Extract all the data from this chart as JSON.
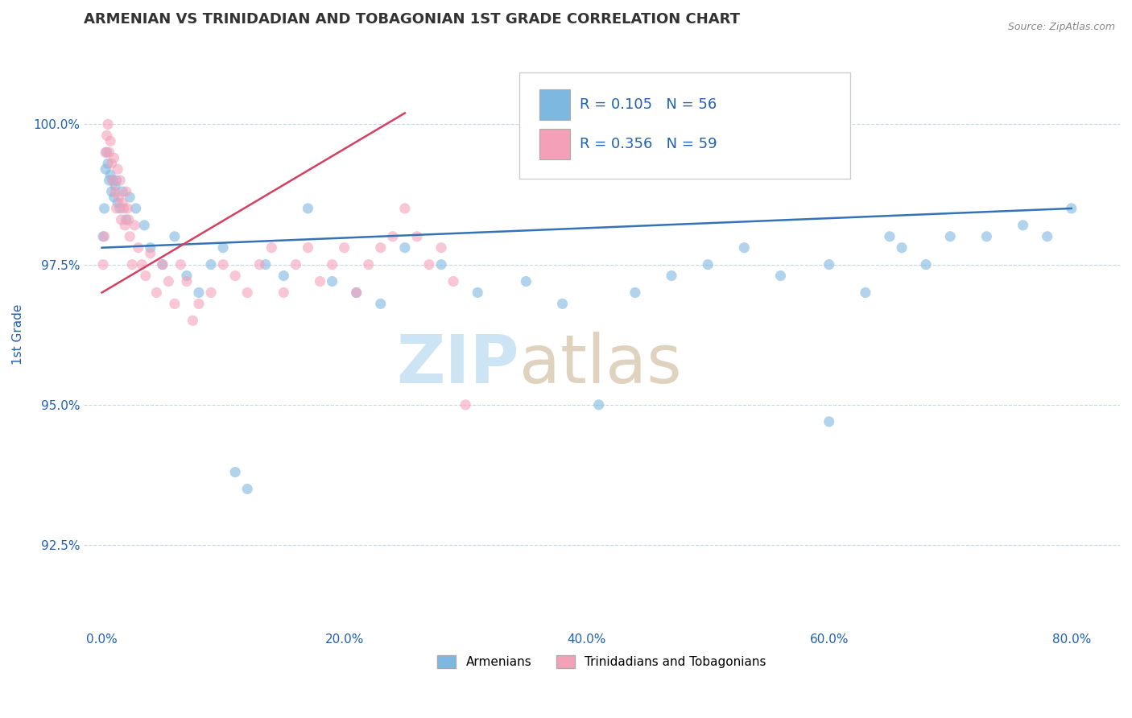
{
  "title": "ARMENIAN VS TRINIDADIAN AND TOBAGONIAN 1ST GRADE CORRELATION CHART",
  "source": "Source: ZipAtlas.com",
  "xlabel_ticks": [
    "0.0%",
    "20.0%",
    "40.0%",
    "60.0%",
    "80.0%"
  ],
  "xlabel_values": [
    0.0,
    20.0,
    40.0,
    60.0,
    80.0
  ],
  "ylabel": "1st Grade",
  "ylim": [
    91.0,
    101.5
  ],
  "xlim": [
    -1.5,
    84.0
  ],
  "ytick_values": [
    92.5,
    95.0,
    97.5,
    100.0
  ],
  "ytick_labels": [
    "92.5%",
    "95.0%",
    "97.5%",
    "100.0%"
  ],
  "R_armenian": 0.105,
  "N_armenian": 56,
  "R_trinidadian": 0.356,
  "N_trinidadian": 59,
  "legend_labels": [
    "Armenians",
    "Trinidadians and Tobagonians"
  ],
  "blue_color": "#7db8e0",
  "pink_color": "#f4a0b8",
  "blue_line_color": "#3473b7",
  "pink_line_color": "#d44060",
  "watermark_color": "#cde4f5",
  "title_color": "#333333",
  "axis_color": "#2060b0",
  "background_color": "#ffffff",
  "grid_color": "#c5d8ea",
  "scatter_alpha": 0.6,
  "scatter_size": 90,
  "blue_scatter_x": [
    0.1,
    0.2,
    0.3,
    0.4,
    0.5,
    0.6,
    0.7,
    0.8,
    0.9,
    1.0,
    1.1,
    1.2,
    1.3,
    1.5,
    1.7,
    2.0,
    2.3,
    2.8,
    3.5,
    4.0,
    5.0,
    6.0,
    7.0,
    8.0,
    9.0,
    10.0,
    11.0,
    12.0,
    13.5,
    15.0,
    17.0,
    19.0,
    21.0,
    23.0,
    25.0,
    28.0,
    31.0,
    35.0,
    38.0,
    41.0,
    44.0,
    47.0,
    50.0,
    53.0,
    56.0,
    60.0,
    63.0,
    66.0,
    68.0,
    70.0,
    73.0,
    76.0,
    78.0,
    80.0,
    60.0,
    65.0
  ],
  "blue_scatter_y": [
    98.0,
    98.5,
    99.2,
    99.5,
    99.3,
    99.0,
    99.1,
    98.8,
    99.0,
    98.7,
    98.9,
    99.0,
    98.6,
    98.5,
    98.8,
    98.3,
    98.7,
    98.5,
    98.2,
    97.8,
    97.5,
    98.0,
    97.3,
    97.0,
    97.5,
    97.8,
    93.8,
    93.5,
    97.5,
    97.3,
    98.5,
    97.2,
    97.0,
    96.8,
    97.8,
    97.5,
    97.0,
    97.2,
    96.8,
    95.0,
    97.0,
    97.3,
    97.5,
    97.8,
    97.3,
    97.5,
    97.0,
    97.8,
    97.5,
    98.0,
    98.0,
    98.2,
    98.0,
    98.5,
    94.7,
    98.0
  ],
  "pink_scatter_x": [
    0.1,
    0.2,
    0.3,
    0.4,
    0.5,
    0.6,
    0.7,
    0.8,
    0.9,
    1.0,
    1.1,
    1.2,
    1.3,
    1.4,
    1.5,
    1.6,
    1.7,
    1.8,
    1.9,
    2.0,
    2.1,
    2.2,
    2.3,
    2.5,
    2.7,
    3.0,
    3.3,
    3.6,
    4.0,
    4.5,
    5.0,
    5.5,
    6.0,
    6.5,
    7.0,
    7.5,
    8.0,
    9.0,
    10.0,
    11.0,
    12.0,
    13.0,
    14.0,
    15.0,
    16.0,
    17.0,
    18.0,
    19.0,
    20.0,
    21.0,
    22.0,
    23.0,
    24.0,
    25.0,
    26.0,
    27.0,
    28.0,
    29.0,
    30.0
  ],
  "pink_scatter_y": [
    97.5,
    98.0,
    99.5,
    99.8,
    100.0,
    99.5,
    99.7,
    99.3,
    99.0,
    99.4,
    98.8,
    98.5,
    99.2,
    98.7,
    99.0,
    98.3,
    98.6,
    98.5,
    98.2,
    98.8,
    98.5,
    98.3,
    98.0,
    97.5,
    98.2,
    97.8,
    97.5,
    97.3,
    97.7,
    97.0,
    97.5,
    97.2,
    96.8,
    97.5,
    97.2,
    96.5,
    96.8,
    97.0,
    97.5,
    97.3,
    97.0,
    97.5,
    97.8,
    97.0,
    97.5,
    97.8,
    97.2,
    97.5,
    97.8,
    97.0,
    97.5,
    97.8,
    98.0,
    98.5,
    98.0,
    97.5,
    97.8,
    97.2,
    95.0
  ]
}
